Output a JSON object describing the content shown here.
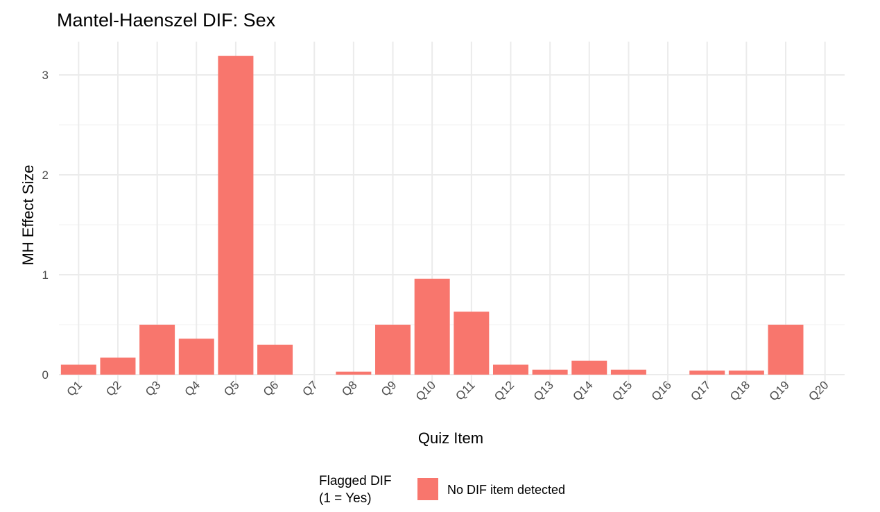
{
  "chart_data": {
    "type": "bar",
    "title": "Mantel-Haenszel DIF:  Sex",
    "xlabel": "Quiz Item",
    "ylabel": "MH Effect Size",
    "categories": [
      "Q1",
      "Q2",
      "Q3",
      "Q4",
      "Q5",
      "Q6",
      "Q7",
      "Q8",
      "Q9",
      "Q10",
      "Q11",
      "Q12",
      "Q13",
      "Q14",
      "Q15",
      "Q16",
      "Q17",
      "Q18",
      "Q19",
      "Q20"
    ],
    "values": [
      0.1,
      0.17,
      0.5,
      0.36,
      3.19,
      0.3,
      0,
      0.03,
      0.5,
      0.96,
      0.63,
      0.1,
      0.05,
      0.14,
      0.05,
      0,
      0.04,
      0.04,
      0.5,
      0
    ],
    "ylim": [
      0,
      3.3
    ],
    "yticks": [
      0,
      1,
      2,
      3
    ],
    "grid": true,
    "bar_color": "#F8766D",
    "legend": {
      "position": "bottom",
      "title_lines": [
        "Flagged DIF",
        "(1 = Yes)"
      ],
      "entries": [
        {
          "label": "No DIF item detected",
          "color": "#F8766D"
        }
      ]
    }
  }
}
